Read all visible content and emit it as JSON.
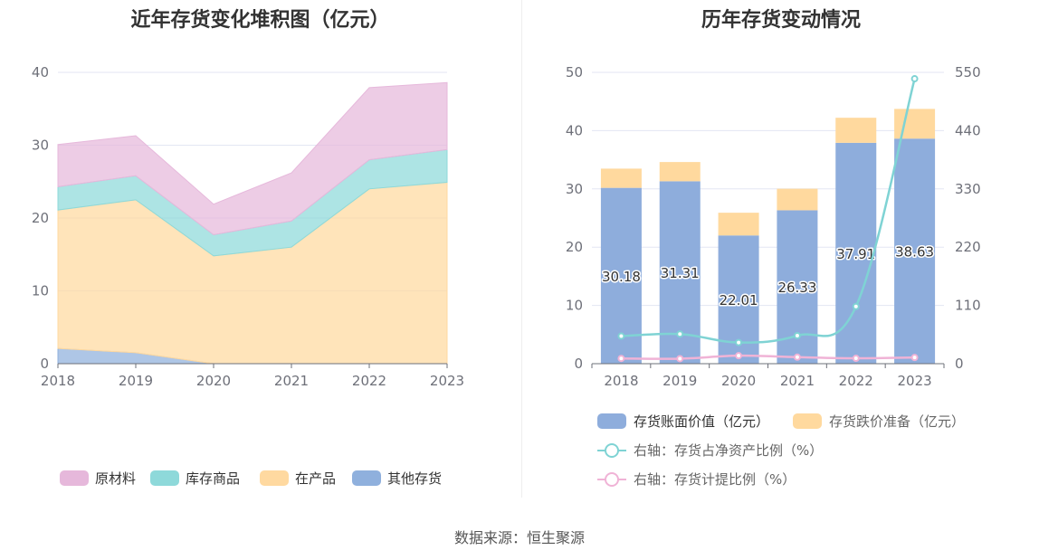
{
  "source": {
    "label": "数据来源：恒生聚源"
  },
  "chart_data": [
    {
      "type": "area",
      "stacked": true,
      "title": "近年存货变化堆积图（亿元）",
      "x": [
        "2018",
        "2019",
        "2020",
        "2021",
        "2022",
        "2023"
      ],
      "ylim": [
        0,
        40
      ],
      "yticks": [
        0,
        10,
        20,
        30,
        40
      ],
      "grid": true,
      "legend_position": "bottom",
      "series": [
        {
          "name": "其他存货",
          "color": "#8fb0dd",
          "values": [
            2.1,
            1.5,
            0.0,
            0.0,
            0.0,
            0.0
          ]
        },
        {
          "name": "在产品",
          "color": "#ffd9a0",
          "values": [
            19.0,
            21.0,
            14.8,
            16.0,
            24.0,
            24.9
          ]
        },
        {
          "name": "库存商品",
          "color": "#8ed9da",
          "values": [
            3.2,
            3.3,
            2.9,
            3.6,
            4.0,
            4.5
          ]
        },
        {
          "name": "原材料",
          "color": "#e6b8db",
          "values": [
            5.8,
            5.5,
            4.2,
            6.6,
            9.9,
            9.2
          ]
        }
      ]
    },
    {
      "type": "bar",
      "stacked": true,
      "title": "历年存货变动情况",
      "categories": [
        "2018",
        "2019",
        "2020",
        "2021",
        "2022",
        "2023"
      ],
      "ylim": [
        0,
        50
      ],
      "yticks": [
        0,
        10,
        20,
        30,
        40,
        50
      ],
      "y2lim": [
        0,
        550
      ],
      "y2ticks": [
        0,
        110,
        220,
        330,
        440,
        550
      ],
      "grid": true,
      "legend_position": "bottom",
      "series": [
        {
          "name": "存货账面价值（亿元）",
          "color": "#8eaddc",
          "axis": "left",
          "values": [
            30.18,
            31.31,
            22.01,
            26.33,
            37.91,
            38.63
          ],
          "labels": [
            "30.18",
            "31.31",
            "22.01",
            "26.33",
            "37.91",
            "38.63"
          ]
        },
        {
          "name": "存货跌价准备（亿元）",
          "color": "#ffd99e",
          "axis": "left",
          "values": [
            3.3,
            3.3,
            3.9,
            3.7,
            4.3,
            5.1
          ]
        }
      ],
      "line_series": [
        {
          "name": "右轴：存货占净资产比例（%）",
          "color": "#7fd3d4",
          "axis": "right",
          "values": [
            52,
            56,
            40,
            53,
            108,
            538
          ]
        },
        {
          "name": "右轴：存货计提比例（%）",
          "color": "#f0b3d6",
          "axis": "right",
          "values": [
            9.9,
            9.5,
            15.1,
            12.3,
            10.2,
            11.7
          ]
        }
      ]
    }
  ]
}
